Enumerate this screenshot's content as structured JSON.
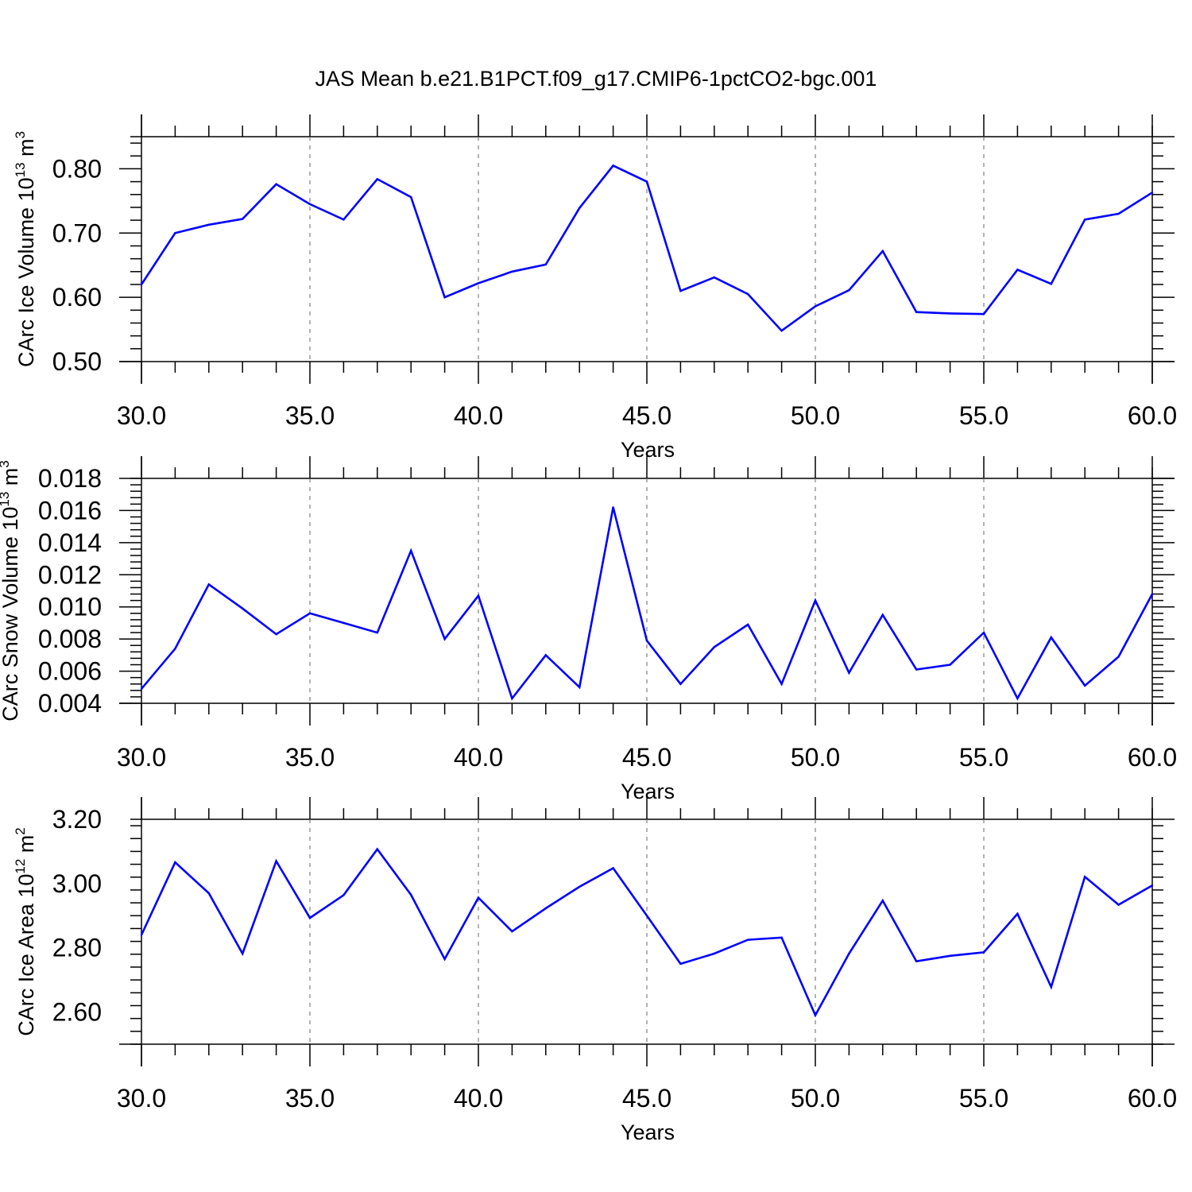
{
  "figure": {
    "title": "JAS Mean b.e21.B1PCT.f09_g17.CMIP6-1pctCO2-bgc.001",
    "line_color": "#0000ff",
    "grid_color": "#808080"
  },
  "chart_data": [
    {
      "type": "line",
      "ylabel": {
        "text": "CArc Ice Volume 10",
        "exponent": "13",
        "unit": " m",
        "unit_exponent": "3"
      },
      "xlabel": "Years",
      "xlim": [
        30,
        60
      ],
      "ylim": [
        0.5,
        0.85
      ],
      "x_ticks": [
        30,
        35,
        40,
        45,
        50,
        55,
        60
      ],
      "x_tick_labels": [
        "30.0",
        "35.0",
        "40.0",
        "45.0",
        "50.0",
        "55.0",
        "60.0"
      ],
      "y_ticks": [
        0.5,
        0.6,
        0.7,
        0.8
      ],
      "y_tick_labels": [
        "0.50",
        "0.60",
        "0.70",
        "0.80"
      ],
      "x_minor_step": 1,
      "y_minor_step": 0.02,
      "grid": "vertical dashed",
      "x": [
        30,
        31,
        32,
        33,
        34,
        35,
        36,
        37,
        38,
        39,
        40,
        41,
        42,
        43,
        44,
        45,
        46,
        47,
        48,
        49,
        50,
        51,
        52,
        53,
        54,
        55,
        56,
        57,
        58,
        59,
        60
      ],
      "values": [
        0.62,
        0.7,
        0.713,
        0.722,
        0.776,
        0.745,
        0.721,
        0.784,
        0.756,
        0.6,
        0.622,
        0.64,
        0.651,
        0.739,
        0.805,
        0.78,
        0.61,
        0.631,
        0.605,
        0.548,
        0.586,
        0.611,
        0.672,
        0.577,
        0.575,
        0.574,
        0.643,
        0.621,
        0.721,
        0.73,
        0.763
      ]
    },
    {
      "type": "line",
      "ylabel": {
        "text": "CArc Snow Volume 10",
        "exponent": "13",
        "unit": " m",
        "unit_exponent": "3"
      },
      "xlabel": "Years",
      "xlim": [
        30,
        60
      ],
      "ylim": [
        0.004,
        0.018
      ],
      "x_ticks": [
        30,
        35,
        40,
        45,
        50,
        55,
        60
      ],
      "x_tick_labels": [
        "30.0",
        "35.0",
        "40.0",
        "45.0",
        "50.0",
        "55.0",
        "60.0"
      ],
      "y_ticks": [
        0.004,
        0.006,
        0.008,
        0.01,
        0.012,
        0.014,
        0.016,
        0.018
      ],
      "y_tick_labels": [
        "0.004",
        "0.006",
        "0.008",
        "0.010",
        "0.012",
        "0.014",
        "0.016",
        "0.018"
      ],
      "x_minor_step": 1,
      "y_minor_step": 0.0004,
      "grid": "vertical dashed",
      "x": [
        30,
        31,
        32,
        33,
        34,
        35,
        36,
        37,
        38,
        39,
        40,
        41,
        42,
        43,
        44,
        45,
        46,
        47,
        48,
        49,
        50,
        51,
        52,
        53,
        54,
        55,
        56,
        57,
        58,
        59,
        60
      ],
      "values": [
        0.0049,
        0.0074,
        0.0114,
        0.0099,
        0.0083,
        0.0096,
        0.009,
        0.0084,
        0.0135,
        0.008,
        0.0107,
        0.0043,
        0.007,
        0.005,
        0.0162,
        0.0079,
        0.0052,
        0.0075,
        0.0089,
        0.0052,
        0.0104,
        0.0059,
        0.0095,
        0.0061,
        0.0064,
        0.0084,
        0.0043,
        0.0081,
        0.0051,
        0.0069,
        0.0108
      ]
    },
    {
      "type": "line",
      "ylabel": {
        "text": "CArc Ice Area 10",
        "exponent": "12",
        "unit": " m",
        "unit_exponent": "2"
      },
      "xlabel": "Years",
      "xlim": [
        30,
        60
      ],
      "ylim": [
        2.5,
        3.2
      ],
      "x_ticks": [
        30,
        35,
        40,
        45,
        50,
        55,
        60
      ],
      "x_tick_labels": [
        "30.0",
        "35.0",
        "40.0",
        "45.0",
        "50.0",
        "55.0",
        "60.0"
      ],
      "y_ticks": [
        2.6,
        2.8,
        3.0,
        3.2
      ],
      "y_tick_labels": [
        "2.60",
        "2.80",
        "3.00",
        "3.20"
      ],
      "x_minor_step": 1,
      "y_minor_step": 0.04,
      "grid": "vertical dashed",
      "x": [
        30,
        31,
        32,
        33,
        34,
        35,
        36,
        37,
        38,
        39,
        40,
        41,
        42,
        43,
        44,
        45,
        46,
        47,
        48,
        49,
        50,
        51,
        52,
        53,
        54,
        55,
        56,
        57,
        58,
        59,
        60
      ],
      "values": [
        2.84,
        3.066,
        2.97,
        2.782,
        3.07,
        2.893,
        2.964,
        3.107,
        2.965,
        2.765,
        2.956,
        2.851,
        2.923,
        2.99,
        3.048,
        2.9,
        2.75,
        2.782,
        2.825,
        2.832,
        2.59,
        2.782,
        2.947,
        2.758,
        2.775,
        2.786,
        2.906,
        2.678,
        3.021,
        2.934,
        2.994
      ]
    }
  ]
}
